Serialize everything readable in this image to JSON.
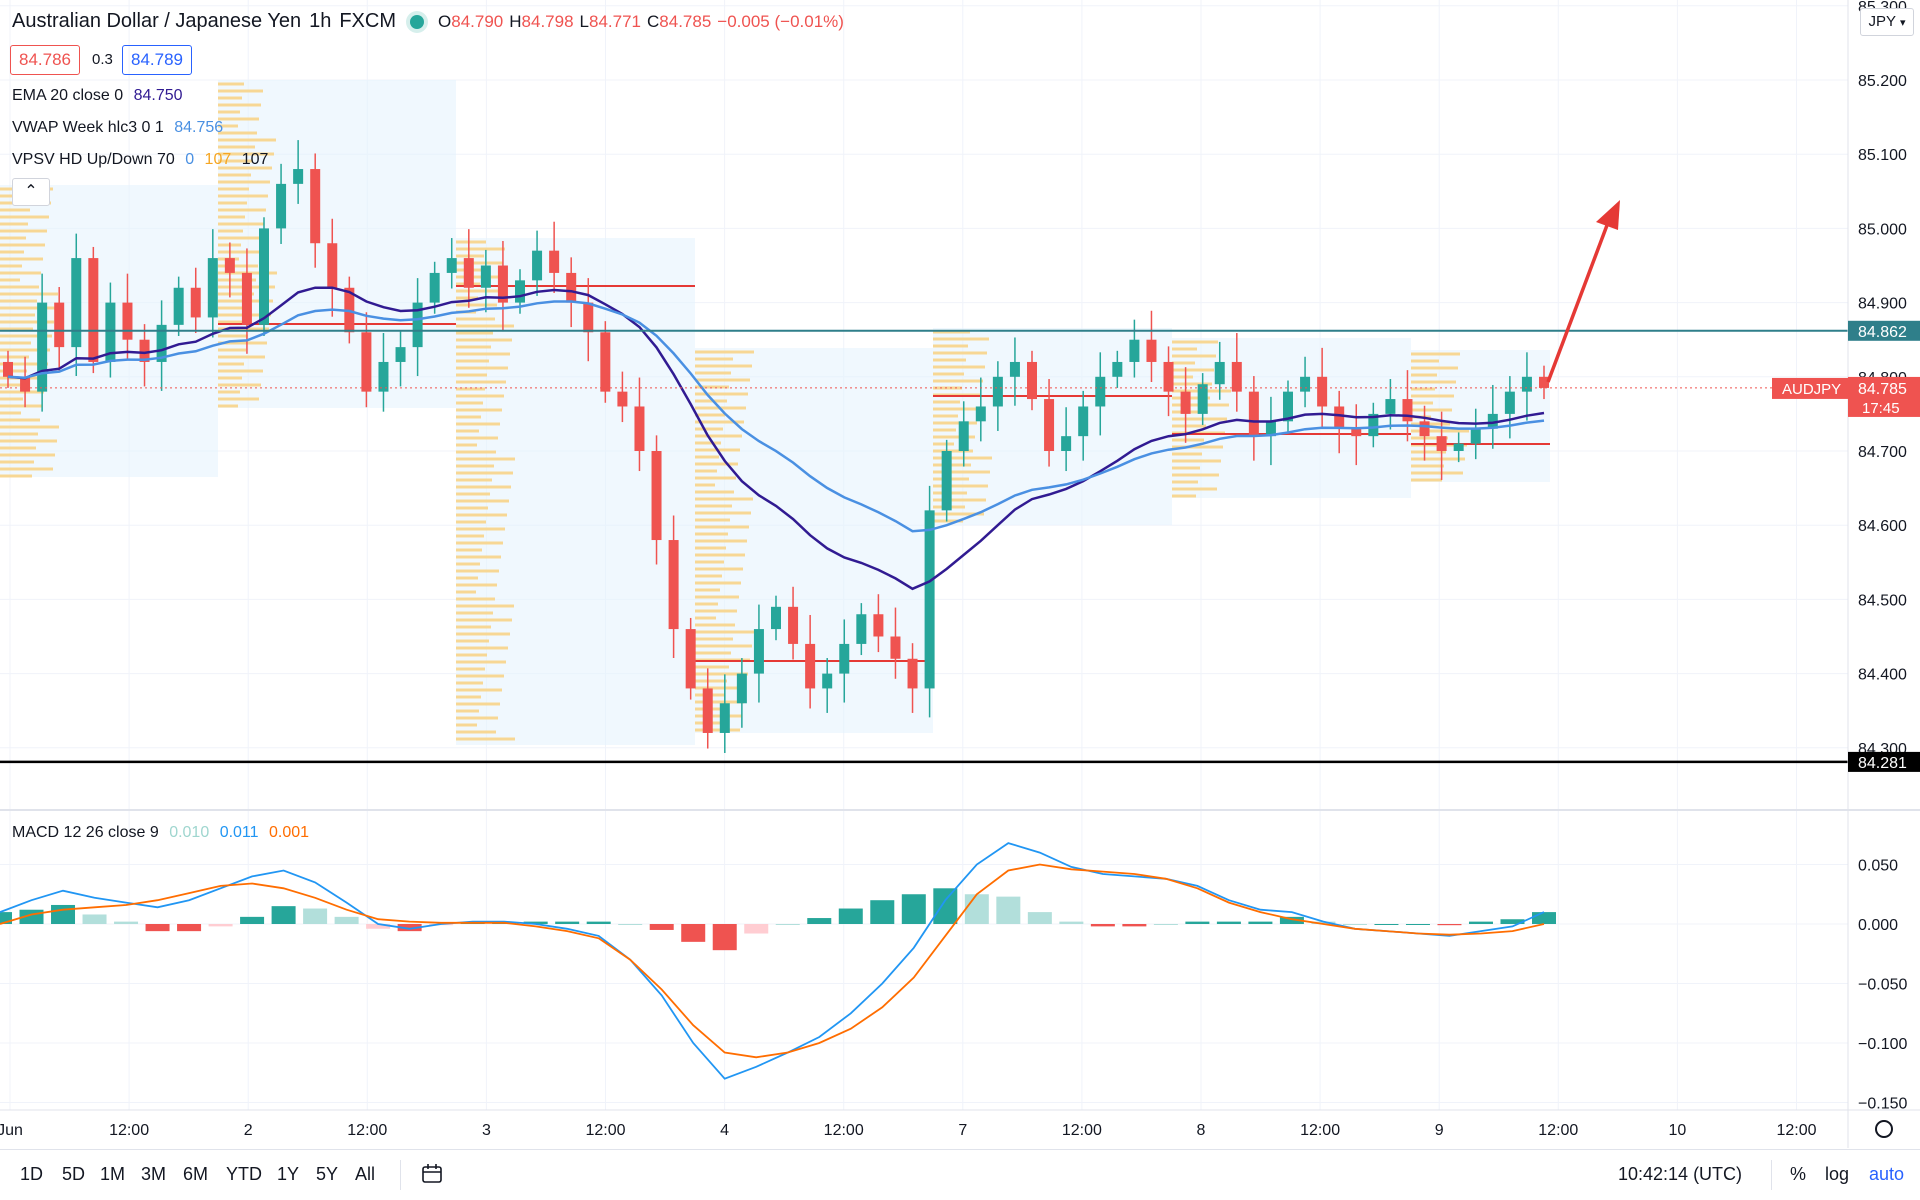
{
  "header": {
    "symbol_title": "Australian Dollar / Japanese Yen",
    "interval": "1h",
    "broker": "FXCM",
    "ohlc": [
      {
        "k": "O",
        "v": "84.790"
      },
      {
        "k": "H",
        "v": "84.798"
      },
      {
        "k": "L",
        "v": "84.771"
      },
      {
        "k": "C",
        "v": "84.785"
      }
    ],
    "change": "−0.005 (−0.01%)",
    "sell_price": "84.786",
    "spread": "0.3",
    "buy_price": "84.789"
  },
  "legends": {
    "ema": {
      "name": "EMA 20 close 0",
      "value": "84.750"
    },
    "vwap": {
      "name": "VWAP Week hlc3 0 1",
      "value": "84.756"
    },
    "vpsv": {
      "name": "VPSV HD Up/Down 70",
      "v1": "0",
      "v2": "107",
      "v3": "107"
    },
    "macd": {
      "name": "MACD 12 26 close 9",
      "v1": "0.010",
      "v2": "0.011",
      "v3": "0.001"
    }
  },
  "price_axis": {
    "ticks": [
      "85.300",
      "85.200",
      "85.100",
      "85.000",
      "84.900",
      "84.800",
      "84.700",
      "84.600",
      "84.500",
      "84.400",
      "84.300"
    ],
    "resistance_label": "84.862",
    "support_label": "84.281",
    "symbol_tag": "AUDJPY",
    "last_price": "84.785",
    "countdown": "17:45",
    "currency_select": "JPY"
  },
  "macd_axis": {
    "ticks": [
      "0.050",
      "0.000",
      "−0.050",
      "−0.100",
      "−0.150"
    ]
  },
  "time_axis": {
    "labels": [
      "Jun",
      "12:00",
      "2",
      "12:00",
      "3",
      "12:00",
      "4",
      "12:00",
      "7",
      "12:00",
      "8",
      "12:00",
      "9",
      "12:00",
      "10",
      "12:00"
    ]
  },
  "bottom_bar": {
    "timeframes": [
      "1D",
      "5D",
      "1M",
      "3M",
      "6M",
      "YTD",
      "1Y",
      "5Y",
      "All"
    ],
    "clock": "10:42:14 (UTC)",
    "percent": "%",
    "log": "log",
    "auto": "auto"
  },
  "colors": {
    "up": "#26a69a",
    "down": "#ef5350",
    "ema": "#311b92",
    "vwap": "#4a90e2",
    "resistance": "#2f7f8a",
    "support": "#000000",
    "arrow": "#e53935"
  },
  "chart_data": [
    {
      "type": "candlestick",
      "title": "Australian Dollar / Japanese Yen 1h FXCM",
      "ylim": [
        84.28,
        85.31
      ],
      "levels": {
        "resistance": 84.862,
        "support": 84.281
      },
      "closes": [
        84.8,
        84.78,
        84.9,
        84.84,
        84.96,
        84.82,
        84.9,
        84.85,
        84.82,
        84.87,
        84.92,
        84.88,
        84.96,
        84.94,
        84.87,
        85.0,
        85.06,
        85.08,
        84.98,
        84.92,
        84.86,
        84.78,
        84.82,
        84.84,
        84.9,
        84.94,
        84.96,
        84.92,
        84.95,
        84.9,
        84.93,
        84.97,
        84.94,
        84.9,
        84.86,
        84.78,
        84.76,
        84.7,
        84.58,
        84.46,
        84.38,
        84.32,
        84.36,
        84.4,
        84.46,
        84.49,
        84.44,
        84.38,
        84.4,
        84.44,
        84.48,
        84.45,
        84.42,
        84.38,
        84.62,
        84.7,
        84.74,
        84.76,
        84.8,
        84.82,
        84.77,
        84.7,
        84.72,
        84.76,
        84.8,
        84.82,
        84.85,
        84.82,
        84.78,
        84.75,
        84.79,
        84.82,
        84.78,
        84.72,
        84.74,
        84.78,
        84.8,
        84.76,
        84.73,
        84.72,
        84.75,
        84.77,
        84.74,
        84.72,
        84.7,
        84.71,
        84.73,
        84.75,
        84.78,
        84.8,
        84.785
      ]
    },
    {
      "type": "line",
      "title": "MACD 12 26 close 9",
      "ylim": [
        -0.16,
        0.09
      ],
      "series": [
        {
          "name": "MACD",
          "values": [
            0.01,
            0.02,
            0.028,
            0.022,
            0.018,
            0.014,
            0.02,
            0.03,
            0.04,
            0.045,
            0.035,
            0.018,
            0.0,
            -0.004,
            0.0,
            0.002,
            0.002,
            0.0,
            -0.004,
            -0.01,
            -0.03,
            -0.06,
            -0.1,
            -0.13,
            -0.12,
            -0.108,
            -0.095,
            -0.075,
            -0.05,
            -0.02,
            0.02,
            0.05,
            0.068,
            0.06,
            0.048,
            0.042,
            0.04,
            0.038,
            0.032,
            0.02,
            0.012,
            0.01,
            0.002,
            -0.004,
            -0.006,
            -0.008,
            -0.01,
            -0.006,
            -0.002,
            0.01
          ]
        },
        {
          "name": "Signal",
          "values": [
            0.0,
            0.008,
            0.012,
            0.014,
            0.016,
            0.02,
            0.026,
            0.032,
            0.034,
            0.03,
            0.022,
            0.012,
            0.004,
            0.002,
            0.001,
            0.001,
            0.001,
            -0.002,
            -0.006,
            -0.012,
            -0.03,
            -0.055,
            -0.085,
            -0.108,
            -0.112,
            -0.108,
            -0.1,
            -0.088,
            -0.07,
            -0.045,
            -0.01,
            0.025,
            0.045,
            0.05,
            0.046,
            0.044,
            0.042,
            0.038,
            0.03,
            0.018,
            0.01,
            0.004,
            0.0,
            -0.004,
            -0.006,
            -0.008,
            -0.009,
            -0.008,
            -0.006,
            0.0
          ]
        },
        {
          "name": "Histogram",
          "values": [
            0.01,
            0.012,
            0.016,
            0.008,
            0.002,
            -0.006,
            -0.006,
            -0.002,
            0.006,
            0.015,
            0.013,
            0.006,
            -0.004,
            -0.006,
            -0.001,
            0.001,
            0.001,
            0.002,
            0.002,
            0.002,
            0.0,
            -0.005,
            -0.015,
            -0.022,
            -0.008,
            0.0,
            0.005,
            0.013,
            0.02,
            0.025,
            0.03,
            0.025,
            0.023,
            0.01,
            0.002,
            -0.002,
            -0.002,
            0.0,
            0.002,
            0.002,
            0.002,
            0.006,
            0.002,
            0.0,
            0.0,
            0.0,
            -0.001,
            0.002,
            0.004,
            0.01
          ]
        }
      ]
    }
  ]
}
